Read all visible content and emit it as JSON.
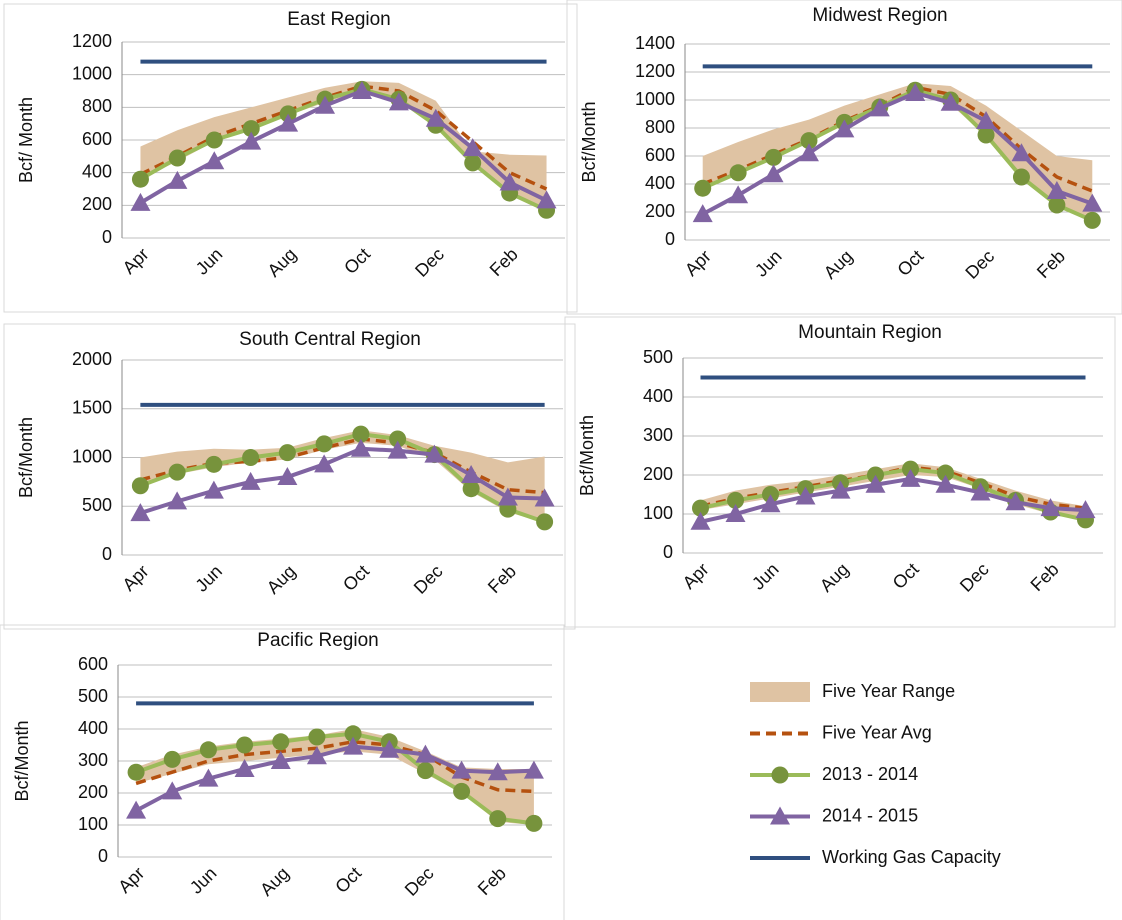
{
  "chart_data": [
    {
      "type": "line",
      "title": "East Region",
      "ylabel": "Bcf/ Month",
      "categories": [
        "Apr",
        null,
        "Jun",
        null,
        "Aug",
        null,
        "Oct",
        null,
        "Dec",
        null,
        "Feb",
        null
      ],
      "ylim": [
        0,
        1200
      ],
      "yticks": [
        0,
        200,
        400,
        600,
        800,
        1000,
        1200
      ],
      "grid": true,
      "series": [
        {
          "name": "Five Year Range",
          "color": "#dfc3a3",
          "low": [
            360,
            470,
            590,
            660,
            750,
            830,
            900,
            840,
            680,
            450,
            270,
            170
          ],
          "high": [
            560,
            660,
            740,
            800,
            860,
            920,
            960,
            950,
            840,
            530,
            510,
            505
          ]
        },
        {
          "name": "Five Year Avg",
          "color": "#b5510f",
          "dash": true,
          "values": [
            390,
            500,
            620,
            700,
            780,
            860,
            930,
            900,
            780,
            590,
            400,
            300
          ]
        },
        {
          "name": "2013 - 2014",
          "color": "#9bbb59",
          "marker": "circle",
          "marker_color": "#77933c",
          "values": [
            360,
            490,
            600,
            670,
            760,
            850,
            910,
            850,
            690,
            460,
            275,
            170
          ]
        },
        {
          "name": "2014 - 2015",
          "color": "#8064a2",
          "marker": "triangle",
          "marker_color": "#8064a2",
          "values": [
            215,
            350,
            470,
            590,
            700,
            810,
            900,
            830,
            730,
            550,
            340,
            230
          ]
        },
        {
          "name": "Working Gas Capacity",
          "color": "#2f4f7f",
          "value": 1080
        }
      ]
    },
    {
      "type": "line",
      "title": "Midwest Region",
      "ylabel": "Bcf/Month",
      "categories": [
        "Apr",
        null,
        "Jun",
        null,
        "Aug",
        null,
        "Oct",
        null,
        "Dec",
        null,
        "Feb",
        null
      ],
      "ylim": [
        0,
        1400
      ],
      "yticks": [
        0,
        200,
        400,
        600,
        800,
        1000,
        1200,
        1400
      ],
      "grid": true,
      "series": [
        {
          "name": "Five Year Range",
          "color": "#dfc3a3",
          "low": [
            370,
            470,
            580,
            700,
            820,
            930,
            1040,
            970,
            740,
            440,
            240,
            140
          ],
          "high": [
            600,
            700,
            790,
            860,
            960,
            1040,
            1120,
            1100,
            960,
            780,
            600,
            570
          ]
        },
        {
          "name": "Five Year Avg",
          "color": "#b5510f",
          "dash": true,
          "values": [
            400,
            500,
            610,
            720,
            850,
            960,
            1090,
            1040,
            880,
            650,
            450,
            350
          ]
        },
        {
          "name": "2013 - 2014",
          "color": "#9bbb59",
          "marker": "circle",
          "marker_color": "#77933c",
          "values": [
            370,
            480,
            590,
            710,
            840,
            950,
            1070,
            1000,
            750,
            450,
            250,
            140
          ]
        },
        {
          "name": "2014 - 2015",
          "color": "#8064a2",
          "marker": "triangle",
          "marker_color": "#8064a2",
          "values": [
            185,
            320,
            470,
            620,
            790,
            940,
            1050,
            980,
            850,
            620,
            350,
            260
          ]
        },
        {
          "name": "Working Gas Capacity",
          "color": "#2f4f7f",
          "value": 1240
        }
      ]
    },
    {
      "type": "line",
      "title": "South Central Region",
      "ylabel": "Bcf/Month",
      "categories": [
        "Apr",
        null,
        "Jun",
        null,
        "Aug",
        null,
        "Oct",
        null,
        "Dec",
        null,
        "Feb",
        null
      ],
      "ylim": [
        0,
        2000
      ],
      "yticks": [
        0,
        500,
        1000,
        1500,
        2000
      ],
      "grid": true,
      "series": [
        {
          "name": "Five Year Range",
          "color": "#dfc3a3",
          "low": [
            700,
            830,
            900,
            950,
            980,
            1080,
            1150,
            1120,
            980,
            650,
            440,
            330
          ],
          "high": [
            1000,
            1060,
            1090,
            1080,
            1100,
            1200,
            1280,
            1230,
            1120,
            1050,
            950,
            1010
          ]
        },
        {
          "name": "Five Year Avg",
          "color": "#b5510f",
          "dash": true,
          "values": [
            770,
            870,
            940,
            960,
            1000,
            1100,
            1190,
            1150,
            1050,
            850,
            670,
            640
          ]
        },
        {
          "name": "2013 - 2014",
          "color": "#9bbb59",
          "marker": "circle",
          "marker_color": "#77933c",
          "values": [
            710,
            850,
            930,
            1000,
            1050,
            1140,
            1240,
            1190,
            1030,
            680,
            470,
            340
          ]
        },
        {
          "name": "2014 - 2015",
          "color": "#8064a2",
          "marker": "triangle",
          "marker_color": "#8064a2",
          "values": [
            430,
            550,
            660,
            750,
            800,
            930,
            1090,
            1070,
            1030,
            820,
            590,
            580
          ]
        },
        {
          "name": "Working Gas Capacity",
          "color": "#2f4f7f",
          "value": 1540
        }
      ]
    },
    {
      "type": "line",
      "title": "Mountain Region",
      "ylabel": "Bcf/Month",
      "categories": [
        "Apr",
        null,
        "Jun",
        null,
        "Aug",
        null,
        "Oct",
        null,
        "Dec",
        null,
        "Feb",
        null
      ],
      "ylim": [
        0,
        500
      ],
      "yticks": [
        0,
        100,
        200,
        300,
        400,
        500
      ],
      "grid": true,
      "series": [
        {
          "name": "Five Year Range",
          "color": "#dfc3a3",
          "low": [
            110,
            125,
            140,
            155,
            170,
            185,
            200,
            195,
            165,
            125,
            100,
            85
          ],
          "high": [
            135,
            160,
            175,
            185,
            200,
            215,
            230,
            220,
            190,
            160,
            135,
            120
          ]
        },
        {
          "name": "Five Year Avg",
          "color": "#b5510f",
          "dash": true,
          "values": [
            120,
            140,
            155,
            170,
            185,
            200,
            220,
            210,
            180,
            145,
            125,
            115
          ]
        },
        {
          "name": "2013 - 2014",
          "color": "#9bbb59",
          "marker": "circle",
          "marker_color": "#77933c",
          "values": [
            115,
            135,
            150,
            165,
            180,
            200,
            215,
            205,
            170,
            135,
            105,
            85
          ]
        },
        {
          "name": "2014 - 2015",
          "color": "#8064a2",
          "marker": "triangle",
          "marker_color": "#8064a2",
          "values": [
            80,
            100,
            125,
            145,
            160,
            175,
            190,
            175,
            155,
            130,
            115,
            110
          ]
        },
        {
          "name": "Working Gas Capacity",
          "color": "#2f4f7f",
          "value": 450
        }
      ]
    },
    {
      "type": "line",
      "title": "Pacific Region",
      "ylabel": "Bcf/Month",
      "categories": [
        "Apr",
        null,
        "Jun",
        null,
        "Aug",
        null,
        "Oct",
        null,
        "Dec",
        null,
        "Feb",
        null
      ],
      "ylim": [
        0,
        600
      ],
      "yticks": [
        0,
        100,
        200,
        300,
        400,
        500,
        600
      ],
      "grid": true,
      "series": [
        {
          "name": "Five Year Range",
          "color": "#dfc3a3",
          "low": [
            230,
            260,
            290,
            300,
            310,
            320,
            330,
            320,
            260,
            200,
            110,
            100
          ],
          "high": [
            280,
            320,
            345,
            360,
            370,
            380,
            400,
            375,
            330,
            280,
            275,
            275
          ]
        },
        {
          "name": "Five Year Avg",
          "color": "#b5510f",
          "dash": true,
          "values": [
            230,
            265,
            300,
            320,
            330,
            340,
            360,
            350,
            320,
            250,
            210,
            205
          ]
        },
        {
          "name": "2013 - 2014",
          "color": "#9bbb59",
          "marker": "circle",
          "marker_color": "#77933c",
          "values": [
            265,
            305,
            335,
            350,
            360,
            375,
            385,
            360,
            270,
            205,
            120,
            105
          ]
        },
        {
          "name": "2014 - 2015",
          "color": "#8064a2",
          "marker": "triangle",
          "marker_color": "#8064a2",
          "values": [
            145,
            205,
            245,
            275,
            300,
            315,
            345,
            335,
            320,
            270,
            265,
            270
          ]
        },
        {
          "name": "Working Gas Capacity",
          "color": "#2f4f7f",
          "value": 480
        }
      ]
    }
  ]
}
